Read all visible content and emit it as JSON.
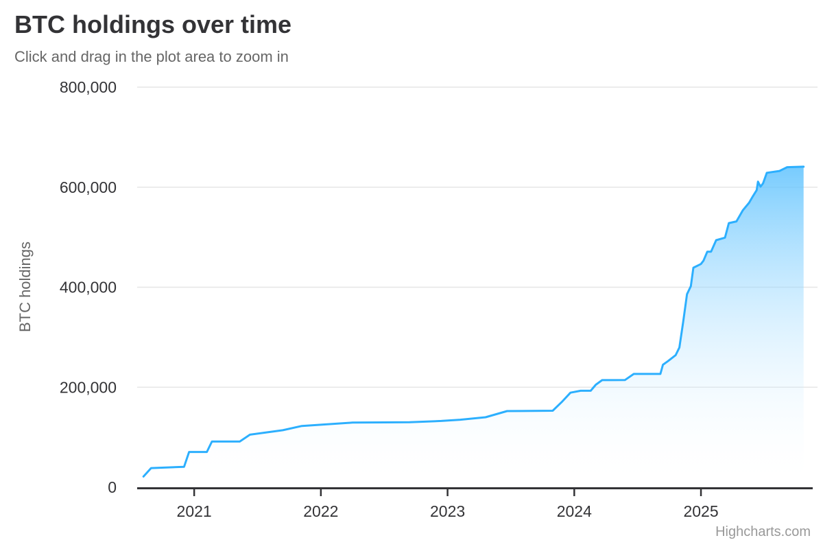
{
  "header": {
    "title": "BTC holdings over time",
    "subtitle": "Click and drag in the plot area to zoom in"
  },
  "credits": {
    "label": "Highcharts.com"
  },
  "colors": {
    "line": "#2caffe",
    "fill_top": "rgba(44,175,254,1)",
    "fill_bottom": "rgba(255,255,255,0)",
    "grid": "#e6e6e6",
    "axis_line": "#333336",
    "tick_label": "#333336",
    "axis_title": "#666666",
    "title": "#333336",
    "subtitle": "#666666",
    "credits": "#999999"
  },
  "chart_data": {
    "type": "area",
    "title": "BTC holdings over time",
    "subtitle": "Click and drag in the plot area to zoom in",
    "xlabel": "",
    "ylabel": "BTC holdings",
    "xlim": [
      2020.55,
      2025.92
    ],
    "ylim": [
      0,
      800000
    ],
    "x_ticks": [
      2021,
      2022,
      2023,
      2024,
      2025
    ],
    "x_tick_labels": [
      "2021",
      "2022",
      "2023",
      "2024",
      "2025"
    ],
    "y_ticks": [
      0,
      200000,
      400000,
      600000,
      800000
    ],
    "y_tick_labels": [
      "0",
      "200,000",
      "400,000",
      "600,000",
      "800,000"
    ],
    "grid": "horizontal-only",
    "legend": "none",
    "series": [
      {
        "name": "BTC holdings",
        "points": [
          [
            2020.6,
            21454
          ],
          [
            2020.66,
            38250
          ],
          [
            2020.92,
            40824
          ],
          [
            2020.96,
            70470
          ],
          [
            2021.1,
            70470
          ],
          [
            2021.14,
            91326
          ],
          [
            2021.36,
            91326
          ],
          [
            2021.44,
            105085
          ],
          [
            2021.55,
            108992
          ],
          [
            2021.7,
            114042
          ],
          [
            2021.85,
            122478
          ],
          [
            2022.0,
            125051
          ],
          [
            2022.25,
            129218
          ],
          [
            2022.5,
            129699
          ],
          [
            2022.7,
            130000
          ],
          [
            2022.95,
            132500
          ],
          [
            2023.1,
            135000
          ],
          [
            2023.3,
            140000
          ],
          [
            2023.47,
            152333
          ],
          [
            2023.83,
            153000
          ],
          [
            2023.9,
            170000
          ],
          [
            2023.97,
            189150
          ],
          [
            2024.05,
            193000
          ],
          [
            2024.13,
            193000
          ],
          [
            2024.17,
            205000
          ],
          [
            2024.22,
            214246
          ],
          [
            2024.4,
            214400
          ],
          [
            2024.47,
            226500
          ],
          [
            2024.68,
            226500
          ],
          [
            2024.7,
            245000
          ],
          [
            2024.74,
            252220
          ],
          [
            2024.8,
            264000
          ],
          [
            2024.83,
            279420
          ],
          [
            2024.86,
            331200
          ],
          [
            2024.89,
            386000
          ],
          [
            2024.92,
            402100
          ],
          [
            2024.94,
            439000
          ],
          [
            2025.0,
            446400
          ],
          [
            2025.02,
            453000
          ],
          [
            2025.05,
            471107
          ],
          [
            2025.08,
            471107
          ],
          [
            2025.12,
            494000
          ],
          [
            2025.19,
            499096
          ],
          [
            2025.22,
            528185
          ],
          [
            2025.28,
            531644
          ],
          [
            2025.33,
            553555
          ],
          [
            2025.38,
            568840
          ],
          [
            2025.41,
            582000
          ],
          [
            2025.44,
            594000
          ],
          [
            2025.45,
            611000
          ],
          [
            2025.47,
            601000
          ],
          [
            2025.49,
            607770
          ],
          [
            2025.52,
            628791
          ],
          [
            2025.62,
            632457
          ],
          [
            2025.68,
            640000
          ],
          [
            2025.81,
            641000
          ]
        ]
      }
    ]
  }
}
